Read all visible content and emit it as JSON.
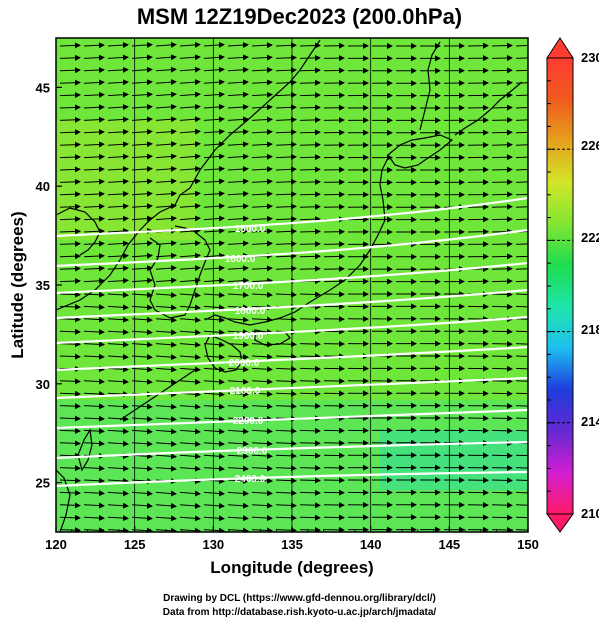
{
  "title": "MSM 12Z19Dec2023 (200.0hPa)",
  "xlabel": "Longitude (degrees)",
  "ylabel": "Latitude  (degrees)",
  "footer": {
    "line1": "Drawing by DCL (https://www.gfd-dennou.org/library/dcl/)",
    "line2": "Data from http://database.rish.kyoto-u.ac.jp/arch/jmadata/"
  },
  "map": {
    "lon_range": [
      120,
      150
    ],
    "lat_range": [
      22.5,
      47.5
    ],
    "lon_ticks": [
      120,
      125,
      130,
      135,
      140,
      145,
      150
    ],
    "lat_ticks": [
      25,
      30,
      35,
      40,
      45
    ],
    "background_color": "#6ee63a",
    "contour_color": "#ffffff",
    "vector_color": "#000000",
    "coast_color": "#000000"
  },
  "colorbar": {
    "min": 210,
    "max": 230,
    "labels": [
      "230",
      "226",
      "222",
      "218",
      "214",
      "210"
    ],
    "stops": [
      "#ff1a66",
      "#d21ed2",
      "#6428d2",
      "#1e3cdc",
      "#1ebef0",
      "#1ee6aa",
      "#1edc50",
      "#82e632",
      "#d2e628",
      "#e6a01e",
      "#f05a1e",
      "#ff3c32"
    ]
  },
  "contours": [
    {
      "label": "1500.0"
    },
    {
      "label": "1600.0"
    },
    {
      "label": "1700.0"
    },
    {
      "label": "1800.0"
    },
    {
      "label": "1900.0"
    },
    {
      "label": "2000.0"
    },
    {
      "label": "2100.0"
    },
    {
      "label": "2200.0"
    },
    {
      "label": "2300.0"
    },
    {
      "label": "2400.0"
    }
  ]
}
